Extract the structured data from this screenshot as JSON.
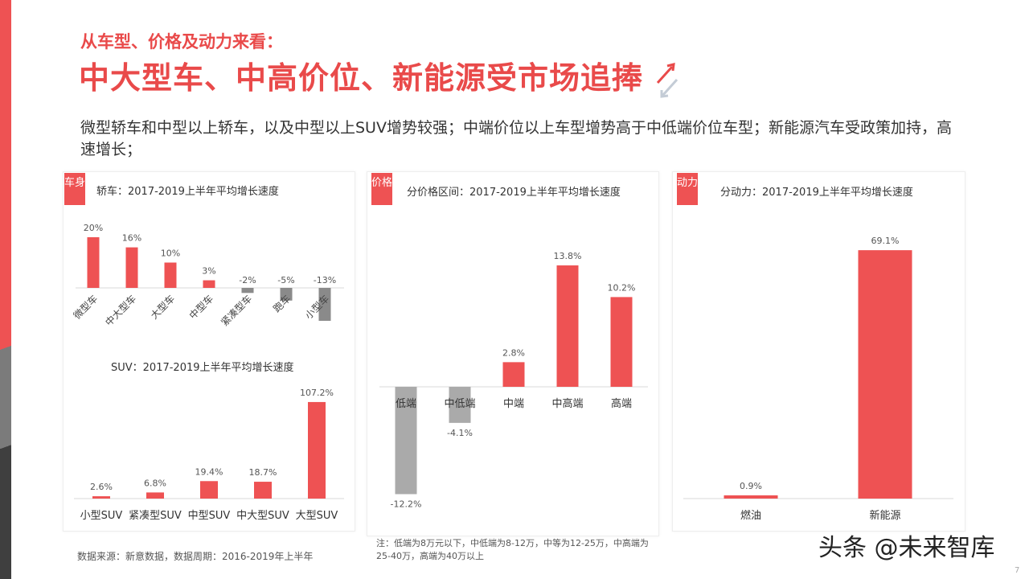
{
  "header": {
    "subtitle": "从车型、价格及动力来看：",
    "title": "中大型车、中高价位、新能源受市场追捧",
    "trend_icon": "up-down-arrows-icon"
  },
  "description": "微型轿车和中型以上轿车，以及中型以上SUV增势较强；中端价位以上车型增势高于中低端价位车型；新能源汽车受政策加持，高速增长；",
  "panels": [
    {
      "tag": "车身",
      "title": "轿车：2017-2019上半年平均增长速度",
      "sub_title": "SUV：2017-2019上半年平均增长速度",
      "source": "数据来源：新意数据，数据周期：2016-2019年上半年"
    },
    {
      "tag": "价格",
      "title": "分价格区间：2017-2019上半年平均增长速度",
      "note": "注：低端为8万元以下，中低端为8-12万，中等为12-25万，中高端为25-40万，高端为40万以上"
    },
    {
      "tag": "动力",
      "title": "分动力：2017-2019上半年平均增长速度"
    }
  ],
  "colors": {
    "accent": "#ee5253",
    "negative_sedan": "#8a8a8a",
    "negative_price": "#aaaaaa"
  },
  "chart_data": [
    {
      "type": "bar",
      "title": "轿车：2017-2019上半年平均增长速度",
      "categories": [
        "微型车",
        "中大型车",
        "大型车",
        "中型车",
        "紧凑型车",
        "跑车",
        "小型车"
      ],
      "values": [
        20,
        16,
        10,
        3,
        -2,
        -5,
        -13
      ],
      "labels": [
        "20%",
        "16%",
        "10%",
        "3%",
        "-2%",
        "-5%",
        "-13%"
      ],
      "unit": "%"
    },
    {
      "type": "bar",
      "title": "SUV：2017-2019上半年平均增长速度",
      "categories": [
        "小型SUV",
        "紧凑型SUV",
        "中型SUV",
        "中大型SUV",
        "大型SUV"
      ],
      "values": [
        2.6,
        6.8,
        19.4,
        18.7,
        107.2
      ],
      "labels": [
        "2.6%",
        "6.8%",
        "19.4%",
        "18.7%",
        "107.2%"
      ],
      "unit": "%"
    },
    {
      "type": "bar",
      "title": "分价格区间：2017-2019上半年平均增长速度",
      "categories": [
        "低端",
        "中低端",
        "中端",
        "中高端",
        "高端"
      ],
      "values": [
        -12.2,
        -4.1,
        2.8,
        13.8,
        10.2
      ],
      "labels": [
        "-12.2%",
        "-4.1%",
        "2.8%",
        "13.8%",
        "10.2%"
      ],
      "unit": "%"
    },
    {
      "type": "bar",
      "title": "分动力：2017-2019上半年平均增长速度",
      "categories": [
        "燃油",
        "新能源"
      ],
      "values": [
        0.9,
        69.1
      ],
      "labels": [
        "0.9%",
        "69.1%"
      ],
      "unit": "%"
    }
  ],
  "watermark": "头条 @未来智库",
  "page": "7"
}
